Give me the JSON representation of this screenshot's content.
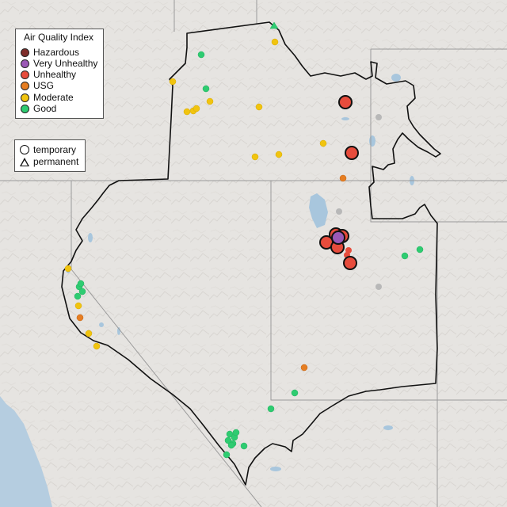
{
  "legend": {
    "title": "Air Quality Index",
    "categories": [
      {
        "label": "Hazardous",
        "color": "#7e2d2a"
      },
      {
        "label": "Very Unhealthy",
        "color": "#9b59b6"
      },
      {
        "label": "Unhealthy",
        "color": "#e74c3c"
      },
      {
        "label": "USG",
        "color": "#e67e22"
      },
      {
        "label": "Moderate",
        "color": "#f1c40f"
      },
      {
        "label": "Good",
        "color": "#2ecc71"
      }
    ],
    "types": [
      {
        "label": "temporary",
        "icon": "circle-icon"
      },
      {
        "label": "permanent",
        "icon": "triangle-icon"
      }
    ]
  },
  "colors": {
    "no_data": "#b8b8b8",
    "ocean": "#b5cde0",
    "lake": "#a8c6dd",
    "land": "#e6e4e1",
    "boundary": "#111111",
    "state_line": "#9a9a9a"
  }
}
